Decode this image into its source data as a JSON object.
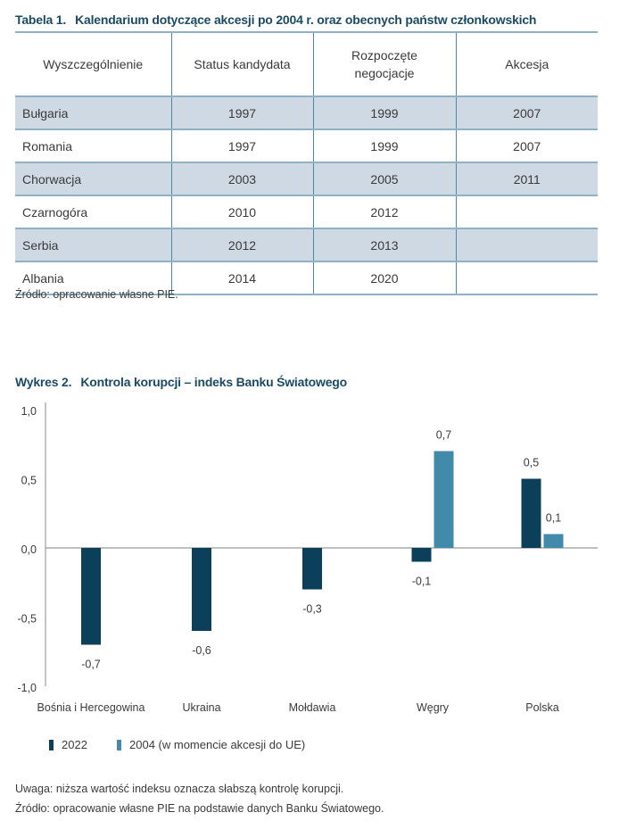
{
  "table": {
    "number": "Tabela 1.",
    "title": "Kalendarium dotyczące akcesji po 2004 r. oraz obecnych państw członkowskich",
    "headers": [
      "Wyszczególnienie",
      "Status kandydata",
      "Rozpoczęte negocjacje",
      "Akcesja"
    ],
    "rows": [
      [
        "Bułgaria",
        "1997",
        "1999",
        "2007"
      ],
      [
        "Romania",
        "1997",
        "1999",
        "2007"
      ],
      [
        "Chorwacja",
        "2003",
        "2005",
        "2011"
      ],
      [
        "Czarnogóra",
        "2010",
        "2012",
        ""
      ],
      [
        "Serbia",
        "2012",
        "2013",
        ""
      ],
      [
        "Albania",
        "2014",
        "2020",
        ""
      ]
    ],
    "source": "Źródło: opracowanie własne PIE."
  },
  "chart": {
    "number": "Wykres 2.",
    "title": "Kontrola korupcji – indeks Banku Światowego",
    "note": "Uwaga: niższa wartość indeksu oznacza słabszą kontrolę korupcji.",
    "source": "Źródło: opracowanie własne PIE na podstawie danych Banku Światowego."
  },
  "chart_data": {
    "type": "bar",
    "title": "Kontrola korupcji – indeks Banku Światowego",
    "xlabel": "",
    "ylabel": "",
    "categories": [
      "Bośnia i Hercegowina",
      "Ukraina",
      "Mołdawia",
      "Węgry",
      "Polska"
    ],
    "series": [
      {
        "name": "2022",
        "color": "#0b3f5a",
        "values": [
          -0.7,
          -0.6,
          -0.3,
          -0.1,
          0.5
        ],
        "labels": [
          "-0,7",
          "-0,6",
          "-0,3",
          "-0,1",
          "0,5"
        ]
      },
      {
        "name": "2004 (w momencie akcesji do UE)",
        "color": "#428aa9",
        "values": [
          null,
          null,
          null,
          0.7,
          0.1
        ],
        "labels": [
          null,
          null,
          null,
          "0,7",
          "0,1"
        ]
      }
    ],
    "ylim": [
      -1.0,
      1.0
    ],
    "yticks": [
      1.0,
      0.5,
      0.0,
      -0.5,
      -1.0
    ],
    "ytick_labels": [
      "1,0",
      "0,5",
      "0,0",
      "-0,5",
      "-1,0"
    ],
    "grid": false,
    "legend_position": "bottom-left"
  }
}
